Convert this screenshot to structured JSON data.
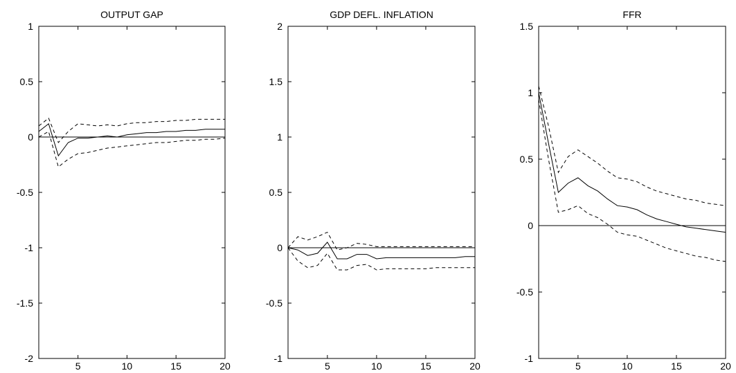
{
  "chart_data": [
    {
      "type": "line",
      "title": "OUTPUT GAP",
      "xlim": [
        1,
        20
      ],
      "ylim": [
        -2,
        1
      ],
      "xticks": [
        5,
        10,
        15,
        20
      ],
      "yticks": [
        -2,
        -1.5,
        -1,
        -0.5,
        0,
        0.5,
        1
      ],
      "x": [
        1,
        2,
        3,
        4,
        5,
        6,
        7,
        8,
        9,
        10,
        11,
        12,
        13,
        14,
        15,
        16,
        17,
        18,
        19,
        20
      ],
      "series": [
        {
          "style": "solid",
          "values": [
            0.05,
            0.12,
            -0.17,
            -0.05,
            -0.01,
            -0.01,
            0.0,
            0.01,
            0.0,
            0.02,
            0.03,
            0.04,
            0.04,
            0.05,
            0.05,
            0.06,
            0.06,
            0.07,
            0.07,
            0.07
          ]
        },
        {
          "style": "dashed",
          "values": [
            0.1,
            0.17,
            -0.05,
            0.05,
            0.12,
            0.11,
            0.1,
            0.11,
            0.1,
            0.12,
            0.13,
            0.13,
            0.14,
            0.14,
            0.15,
            0.15,
            0.16,
            0.16,
            0.16,
            0.16
          ]
        },
        {
          "style": "dashed",
          "values": [
            0.0,
            0.05,
            -0.27,
            -0.2,
            -0.15,
            -0.14,
            -0.12,
            -0.1,
            -0.09,
            -0.08,
            -0.07,
            -0.06,
            -0.05,
            -0.05,
            -0.04,
            -0.03,
            -0.03,
            -0.02,
            -0.02,
            -0.01
          ]
        }
      ],
      "zero_line": true,
      "grid": false
    },
    {
      "type": "line",
      "title": "GDP DEFL. INFLATION",
      "xlim": [
        1,
        20
      ],
      "ylim": [
        -1,
        2
      ],
      "xticks": [
        5,
        10,
        15,
        20
      ],
      "yticks": [
        -1,
        -0.5,
        0,
        0.5,
        1,
        1.5,
        2
      ],
      "x": [
        1,
        2,
        3,
        4,
        5,
        6,
        7,
        8,
        9,
        10,
        11,
        12,
        13,
        14,
        15,
        16,
        17,
        18,
        19,
        20
      ],
      "series": [
        {
          "style": "solid",
          "values": [
            0.0,
            -0.02,
            -0.07,
            -0.05,
            0.05,
            -0.1,
            -0.1,
            -0.06,
            -0.06,
            -0.1,
            -0.09,
            -0.09,
            -0.09,
            -0.09,
            -0.09,
            -0.09,
            -0.09,
            -0.09,
            -0.08,
            -0.08
          ]
        },
        {
          "style": "dashed",
          "values": [
            0.0,
            0.1,
            0.07,
            0.1,
            0.14,
            -0.02,
            0.0,
            0.04,
            0.03,
            0.01,
            0.01,
            0.01,
            0.01,
            0.01,
            0.01,
            0.01,
            0.01,
            0.01,
            0.01,
            0.01
          ]
        },
        {
          "style": "dashed",
          "values": [
            0.0,
            -0.12,
            -0.18,
            -0.16,
            -0.05,
            -0.2,
            -0.2,
            -0.16,
            -0.15,
            -0.2,
            -0.19,
            -0.19,
            -0.19,
            -0.19,
            -0.19,
            -0.18,
            -0.18,
            -0.18,
            -0.18,
            -0.18
          ]
        }
      ],
      "zero_line": true,
      "grid": false
    },
    {
      "type": "line",
      "title": "FFR",
      "xlim": [
        1,
        20
      ],
      "ylim": [
        -1,
        1.5
      ],
      "xticks": [
        5,
        10,
        15,
        20
      ],
      "yticks": [
        -1,
        -0.5,
        0,
        0.5,
        1,
        1.5
      ],
      "x": [
        1,
        2,
        3,
        4,
        5,
        6,
        7,
        8,
        9,
        10,
        11,
        12,
        13,
        14,
        15,
        16,
        17,
        18,
        19,
        20
      ],
      "series": [
        {
          "style": "solid",
          "values": [
            1.0,
            0.62,
            0.25,
            0.32,
            0.36,
            0.3,
            0.26,
            0.2,
            0.15,
            0.14,
            0.12,
            0.08,
            0.05,
            0.03,
            0.01,
            -0.01,
            -0.02,
            -0.03,
            -0.04,
            -0.05
          ]
        },
        {
          "style": "dashed",
          "values": [
            1.05,
            0.75,
            0.4,
            0.52,
            0.57,
            0.52,
            0.47,
            0.41,
            0.36,
            0.35,
            0.33,
            0.29,
            0.26,
            0.24,
            0.22,
            0.2,
            0.19,
            0.17,
            0.16,
            0.15
          ]
        },
        {
          "style": "dashed",
          "values": [
            0.95,
            0.5,
            0.1,
            0.12,
            0.15,
            0.09,
            0.06,
            0.01,
            -0.05,
            -0.07,
            -0.08,
            -0.11,
            -0.14,
            -0.17,
            -0.19,
            -0.21,
            -0.23,
            -0.24,
            -0.26,
            -0.27
          ]
        }
      ],
      "zero_line": true,
      "grid": false
    }
  ]
}
